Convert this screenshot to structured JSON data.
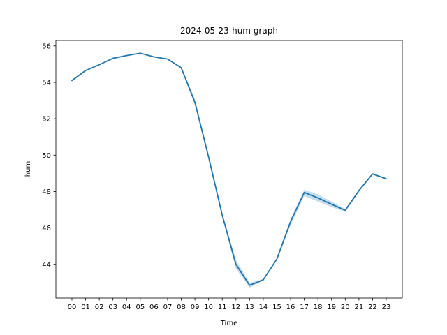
{
  "chart_data": {
    "type": "line",
    "title": "2024-05-23-hum graph",
    "xlabel": "Time",
    "ylabel": "hum",
    "categories": [
      "00",
      "01",
      "02",
      "03",
      "04",
      "05",
      "06",
      "07",
      "08",
      "09",
      "10",
      "11",
      "12",
      "13",
      "14",
      "15",
      "16",
      "17",
      "18",
      "19",
      "20",
      "21",
      "22",
      "23"
    ],
    "series": [
      {
        "values": [
          54.1,
          54.65,
          54.97,
          55.32,
          55.47,
          55.6,
          55.4,
          55.28,
          54.8,
          52.9,
          49.9,
          46.7,
          44.0,
          42.85,
          43.15,
          44.3,
          46.35,
          47.95,
          47.65,
          47.3,
          46.97,
          48.05,
          48.97,
          48.7
        ],
        "lower": [
          54.05,
          54.62,
          54.95,
          55.3,
          55.45,
          55.58,
          55.38,
          55.26,
          54.75,
          52.75,
          49.8,
          46.6,
          43.75,
          42.72,
          43.1,
          44.25,
          46.15,
          47.75,
          47.45,
          47.15,
          46.88,
          47.98,
          48.93,
          48.66
        ],
        "upper": [
          54.15,
          54.68,
          54.99,
          55.34,
          55.49,
          55.62,
          55.42,
          55.3,
          54.85,
          53.1,
          50.0,
          46.8,
          44.25,
          42.98,
          43.2,
          44.35,
          46.5,
          48.1,
          47.85,
          47.45,
          47.05,
          48.12,
          49.01,
          48.74
        ],
        "color": "#1f77b4",
        "band_color": "#1f77b4"
      }
    ],
    "yticks": [
      44,
      46,
      48,
      50,
      52,
      54,
      56
    ],
    "ylim": [
      42.15,
      56.3
    ],
    "grid": false,
    "legend": "none"
  }
}
